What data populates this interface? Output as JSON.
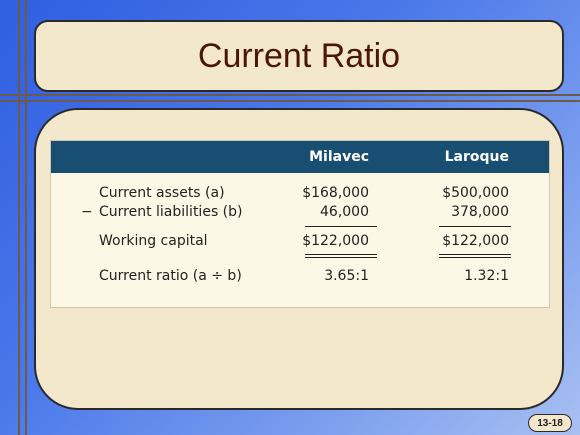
{
  "slide": {
    "title": "Current Ratio",
    "page_number": "13-18"
  },
  "table": {
    "headers": [
      "Milavec",
      "Laroque"
    ],
    "rows": [
      {
        "prefix": "",
        "label": "Current assets (a)",
        "milavec": "$168,000",
        "laroque": "$500,000"
      },
      {
        "prefix": "−",
        "label": "Current liabilities (b)",
        "milavec": "46,000",
        "laroque": "378,000"
      },
      {
        "prefix": "",
        "label": "Working capital",
        "milavec": "$122,000",
        "laroque": "$122,000"
      },
      {
        "prefix": "",
        "label": "Current ratio (a ÷ b)",
        "milavec": "3.65:1",
        "laroque": "1.32:1"
      }
    ]
  },
  "colors": {
    "background": "#3f6fe6",
    "panel": "#f3e7cc",
    "title_text": "#4b1508",
    "table_header": "#184e72",
    "table_body": "#fdf7e6"
  }
}
